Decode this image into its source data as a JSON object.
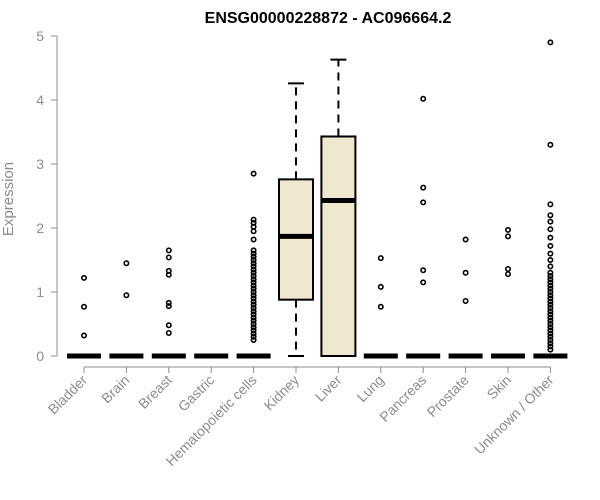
{
  "chart_data": {
    "type": "box",
    "title": "ENSG00000228872 - AC096664.2",
    "xlabel": "",
    "ylabel": "Expression",
    "ylim": [
      0,
      5
    ],
    "yticks": [
      0,
      1,
      2,
      3,
      4,
      5
    ],
    "box_fill": "#efe8cf",
    "categories": [
      "Bladder",
      "Brain",
      "Breast",
      "Gastric",
      "Hematopoietic cells",
      "Kidney",
      "Liver",
      "Lung",
      "Pancreas",
      "Prostate",
      "Skin",
      "Unknown / Other"
    ],
    "boxes": [
      {
        "q1": 0,
        "median": 0,
        "q3": 0,
        "whisker_low": 0,
        "whisker_high": 0,
        "outliers": [
          0.32,
          0.77,
          1.22
        ]
      },
      {
        "q1": 0,
        "median": 0,
        "q3": 0,
        "whisker_low": 0,
        "whisker_high": 0,
        "outliers": [
          0.95,
          1.45
        ]
      },
      {
        "q1": 0,
        "median": 0,
        "q3": 0,
        "whisker_low": 0,
        "whisker_high": 0,
        "outliers": [
          0.36,
          0.48,
          0.78,
          0.83,
          1.27,
          1.33,
          1.54,
          1.65
        ]
      },
      {
        "q1": 0,
        "median": 0,
        "q3": 0,
        "whisker_low": 0,
        "whisker_high": 0,
        "outliers": []
      },
      {
        "q1": 0,
        "median": 0,
        "q3": 0,
        "whisker_low": 0,
        "whisker_high": 0,
        "outliers": [
          0.25,
          0.3,
          0.35,
          0.4,
          0.45,
          0.5,
          0.55,
          0.6,
          0.65,
          0.7,
          0.75,
          0.8,
          0.85,
          0.9,
          0.95,
          1.0,
          1.05,
          1.1,
          1.15,
          1.2,
          1.25,
          1.3,
          1.35,
          1.4,
          1.45,
          1.5,
          1.55,
          1.6,
          1.65,
          1.82,
          1.95,
          2.02,
          2.08,
          2.13,
          2.85
        ]
      },
      {
        "q1": 0.88,
        "median": 1.87,
        "q3": 2.76,
        "whisker_low": 0,
        "whisker_high": 4.26,
        "outliers": []
      },
      {
        "q1": 0,
        "median": 2.43,
        "q3": 3.43,
        "whisker_low": 0,
        "whisker_high": 4.63,
        "outliers": []
      },
      {
        "q1": 0,
        "median": 0,
        "q3": 0,
        "whisker_low": 0,
        "whisker_high": 0,
        "outliers": [
          0.77,
          1.08,
          1.53
        ]
      },
      {
        "q1": 0,
        "median": 0,
        "q3": 0,
        "whisker_low": 0,
        "whisker_high": 0,
        "outliers": [
          1.15,
          1.34,
          2.4,
          2.63,
          4.02
        ]
      },
      {
        "q1": 0,
        "median": 0,
        "q3": 0,
        "whisker_low": 0,
        "whisker_high": 0,
        "outliers": [
          0.86,
          1.3,
          1.82
        ]
      },
      {
        "q1": 0,
        "median": 0,
        "q3": 0,
        "whisker_low": 0,
        "whisker_high": 0,
        "outliers": [
          1.28,
          1.36,
          1.87,
          1.97
        ]
      },
      {
        "q1": 0,
        "median": 0,
        "q3": 0,
        "whisker_low": 0,
        "whisker_high": 0,
        "outliers": [
          0.1,
          0.15,
          0.2,
          0.25,
          0.3,
          0.35,
          0.4,
          0.45,
          0.5,
          0.55,
          0.6,
          0.65,
          0.7,
          0.75,
          0.8,
          0.85,
          0.9,
          0.95,
          1.0,
          1.05,
          1.1,
          1.15,
          1.2,
          1.25,
          1.3,
          1.4,
          1.5,
          1.6,
          1.72,
          1.85,
          1.98,
          2.1,
          2.2,
          2.37,
          3.3,
          4.9
        ]
      }
    ]
  }
}
